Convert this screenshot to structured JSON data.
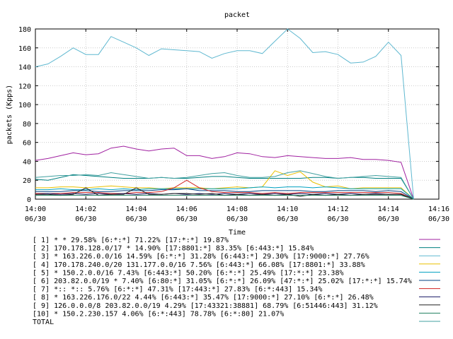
{
  "chart_data": {
    "type": "line",
    "title": "packet",
    "xlabel": "Time",
    "ylabel": "packets (Kpps)",
    "ylim": [
      0,
      180
    ],
    "yticks": [
      "0",
      "20",
      "40",
      "60",
      "80",
      "100",
      "120",
      "140",
      "160",
      "180"
    ],
    "xticks": [
      {
        "time": "14:00",
        "date": "06/30"
      },
      {
        "time": "14:02",
        "date": "06/30"
      },
      {
        "time": "14:04",
        "date": "06/30"
      },
      {
        "time": "14:06",
        "date": "06/30"
      },
      {
        "time": "14:08",
        "date": "06/30"
      },
      {
        "time": "14:10",
        "date": "06/30"
      },
      {
        "time": "14:12",
        "date": "06/30"
      },
      {
        "time": "14:14",
        "date": "06/30"
      },
      {
        "time": "14:16",
        "date": "06/30"
      }
    ],
    "x": [
      "14:00",
      "14:00:30",
      "14:01",
      "14:01:30",
      "14:02",
      "14:02:30",
      "14:03",
      "14:03:30",
      "14:04",
      "14:04:30",
      "14:05",
      "14:05:30",
      "14:06",
      "14:06:30",
      "14:07",
      "14:07:30",
      "14:08",
      "14:08:30",
      "14:09",
      "14:09:30",
      "14:10",
      "14:10:30",
      "14:11",
      "14:11:30",
      "14:12",
      "14:12:30",
      "14:13",
      "14:13:30",
      "14:14",
      "14:14:30",
      "14:15"
    ],
    "series": [
      {
        "name": "[ 1] * * 29.58%  [6:*:*] 71.22% [17:*:*] 19.87%",
        "color": "#a020a0",
        "values": [
          41,
          43,
          46,
          49,
          47,
          48,
          54,
          56,
          53,
          51,
          53,
          54,
          46,
          46,
          43,
          45,
          49,
          48,
          45,
          44,
          46,
          45,
          44,
          43,
          43,
          44,
          42,
          42,
          41,
          39,
          0
        ]
      },
      {
        "name": "[ 2] 170.178.128.0/17 * 14.90%  [17:8801:*] 83.35% [6:443:*] 15.84%",
        "color": "#007f7f",
        "values": [
          21,
          20,
          23,
          26,
          25,
          24,
          23,
          22,
          22,
          22,
          23,
          22,
          22,
          23,
          24,
          24,
          23,
          22,
          22,
          22,
          22,
          22,
          23,
          23,
          22,
          23,
          23,
          22,
          22,
          22,
          0
        ]
      },
      {
        "name": "[ 3] * 163.226.0.0/16 14.59%  [6:*:*] 31.28% [6:443:*] 29.30% [17:9000:*] 27.76%",
        "color": "#5fb8d0",
        "values": [
          140,
          143,
          151,
          160,
          153,
          153,
          172,
          166,
          160,
          152,
          159,
          158,
          157,
          156,
          149,
          154,
          157,
          157,
          154,
          167,
          180,
          170,
          155,
          156,
          153,
          144,
          145,
          151,
          166,
          152,
          0
        ]
      },
      {
        "name": "[ 4] 170.178.240.0/20 131.177.0.0/16 7.56%  [6:443:*] 66.08% [17:8801:*] 33.88%",
        "color": "#e8c000",
        "values": [
          12,
          12,
          13,
          13,
          12,
          13,
          14,
          13,
          12,
          12,
          11,
          12,
          12,
          12,
          11,
          12,
          13,
          12,
          13,
          30,
          25,
          29,
          18,
          13,
          14,
          11,
          12,
          12,
          12,
          12,
          0
        ]
      },
      {
        "name": "[ 5] * 150.2.0.0/16 7.43%  [6:443:*] 50.20% [6:*:*] 25.49% [17:*:*] 23.38%",
        "color": "#00a0c0",
        "values": [
          10,
          10,
          11,
          10,
          10,
          11,
          10,
          11,
          10,
          11,
          11,
          11,
          11,
          11,
          11,
          11,
          11,
          12,
          13,
          12,
          13,
          13,
          12,
          13,
          12,
          11,
          11,
          11,
          11,
          11,
          0
        ]
      },
      {
        "name": "[ 6] 203.82.0.0/19 * 7.40%  [6:80:*] 31.05% [6:*:*] 26.09% [47:*:*] 25.02% [17:*:*] 15.74%",
        "color": "#004080",
        "values": [
          8,
          8,
          8,
          9,
          9,
          8,
          8,
          9,
          9,
          9,
          10,
          10,
          11,
          9,
          9,
          9,
          8,
          8,
          9,
          9,
          9,
          9,
          8,
          8,
          9,
          9,
          9,
          8,
          9,
          8,
          0
        ]
      },
      {
        "name": "[ 7] *:: *:: 5.76%  [6:*:*] 47.31% [17:443:*] 27.83% [6:*:443] 15.34%",
        "color": "#d02020",
        "values": [
          6,
          6,
          6,
          7,
          7,
          7,
          6,
          6,
          7,
          7,
          8,
          12,
          20,
          12,
          8,
          7,
          7,
          7,
          6,
          7,
          6,
          7,
          7,
          7,
          7,
          7,
          7,
          7,
          7,
          6,
          0
        ]
      },
      {
        "name": "[ 8] * 163.226.176.0/22 4.44%  [6:443:*] 35.47% [17:9000:*] 27.10% [6:*:*] 26.48%",
        "color": "#101060",
        "values": [
          5,
          6,
          5,
          6,
          5,
          6,
          5,
          6,
          5,
          6,
          5,
          6,
          5,
          6,
          5,
          6,
          5,
          6,
          5,
          6,
          5,
          6,
          5,
          6,
          5,
          6,
          5,
          6,
          5,
          5,
          0
        ]
      },
      {
        "name": "[ 9] 126.0.0.0/8 203.82.0.0/19 4.29%  [17:43321:38881] 68.79% [6:51446:443] 31.12%",
        "color": "#202020",
        "values": [
          5,
          5,
          4,
          5,
          12,
          4,
          5,
          5,
          12,
          5,
          5,
          6,
          6,
          5,
          6,
          4,
          5,
          4,
          5,
          4,
          5,
          3,
          5,
          4,
          5,
          4,
          5,
          5,
          5,
          5,
          0
        ]
      },
      {
        "name": "[10] * 150.2.230.157 4.06%  [6:*:443] 78.78% [6:*:80] 21.07%",
        "color": "#208060",
        "values": [
          4,
          4,
          4,
          4,
          4,
          4,
          4,
          4,
          4,
          4,
          4,
          4,
          4,
          4,
          4,
          4,
          4,
          4,
          4,
          4,
          4,
          4,
          4,
          4,
          4,
          4,
          4,
          4,
          4,
          4,
          0
        ]
      },
      {
        "name": "TOTAL",
        "color": "#40a0a0",
        "values": [
          23,
          24,
          25,
          25,
          26,
          25,
          28,
          26,
          24,
          22,
          23,
          22,
          23,
          25,
          27,
          28,
          25,
          23,
          23,
          24,
          28,
          30,
          27,
          24,
          22,
          23,
          24,
          25,
          24,
          23,
          0
        ]
      }
    ]
  }
}
